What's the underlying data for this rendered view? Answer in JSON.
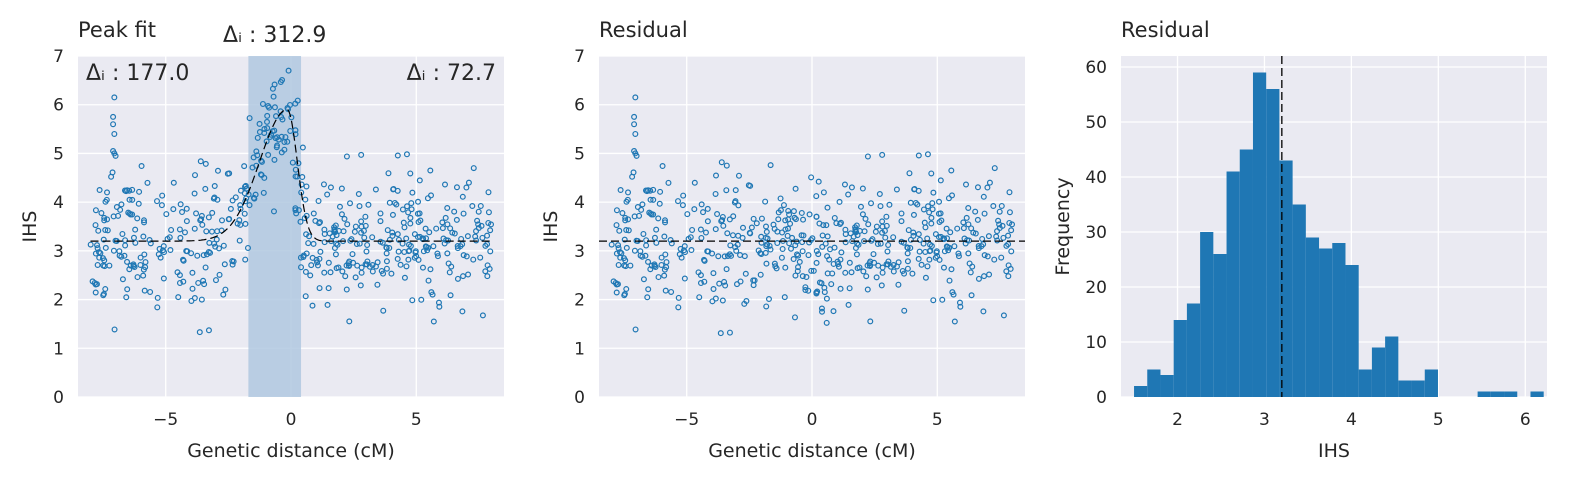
{
  "colors": {
    "panel_bg": "#eaeaf2",
    "grid": "#ffffff",
    "point": "#1f77b4",
    "bar": "#1f77b4",
    "highlight": "#b0c8e0",
    "line": "#000000"
  },
  "chart_data": [
    {
      "type": "scatter",
      "title": "Peak fit",
      "xlabel": "Genetic distance (cM)",
      "ylabel": "IHS",
      "xlim": [
        -8.5,
        8.5
      ],
      "ylim": [
        0,
        7
      ],
      "xticks": [
        -5,
        0,
        5
      ],
      "xtick_labels": [
        "−5",
        "0",
        "5"
      ],
      "yticks": [
        0,
        1,
        2,
        3,
        4,
        5,
        6,
        7
      ],
      "ytick_labels": [
        "0",
        "1",
        "2",
        "3",
        "4",
        "5",
        "6",
        "7"
      ],
      "grid": true,
      "highlight_region": [
        -1.7,
        0.4
      ],
      "baseline": 3.2,
      "peak": {
        "center": -0.15,
        "height": 5.9,
        "left_width": 1.1,
        "right_width": 0.4
      },
      "annotations": [
        {
          "text": "Δᵢ : 177.0",
          "position": "top-left"
        },
        {
          "text": "Δᵢ : 312.9",
          "position": "above-highlight"
        },
        {
          "text": "Δᵢ : 72.7",
          "position": "top-right"
        }
      ],
      "points_summary": {
        "count": 560,
        "x_range": [
          -8,
          8
        ]
      }
    },
    {
      "type": "scatter",
      "title": "Residual",
      "xlabel": "Genetic distance (cM)",
      "ylabel": "IHS",
      "xlim": [
        -8.5,
        8.5
      ],
      "ylim": [
        0,
        7
      ],
      "xticks": [
        -5,
        0,
        5
      ],
      "xtick_labels": [
        "−5",
        "0",
        "5"
      ],
      "yticks": [
        0,
        1,
        2,
        3,
        4,
        5,
        6,
        7
      ],
      "ytick_labels": [
        "0",
        "1",
        "2",
        "3",
        "4",
        "5",
        "6",
        "7"
      ],
      "grid": true,
      "baseline": 3.2,
      "points_summary": {
        "count": 560,
        "x_range": [
          -8,
          8
        ]
      }
    },
    {
      "type": "bar",
      "subtype": "histogram",
      "title": "Residual",
      "xlabel": "IHS",
      "ylabel": "Frequency",
      "xlim": [
        1.35,
        6.25
      ],
      "ylim": [
        0,
        62
      ],
      "xticks": [
        2,
        3,
        4,
        5,
        6
      ],
      "xtick_labels": [
        "2",
        "3",
        "4",
        "5",
        "6"
      ],
      "yticks": [
        0,
        10,
        20,
        30,
        40,
        50,
        60
      ],
      "ytick_labels": [
        "0",
        "10",
        "20",
        "30",
        "40",
        "50",
        "60"
      ],
      "grid": true,
      "vline": 3.2,
      "bin_start": 1.5,
      "bin_width": 0.152,
      "values": [
        2,
        5,
        4,
        14,
        17,
        30,
        26,
        41,
        45,
        59,
        56,
        43,
        35,
        29,
        27,
        28,
        24,
        5,
        9,
        11,
        3,
        3,
        5,
        0,
        0,
        0,
        1,
        1,
        1,
        0,
        1
      ]
    }
  ]
}
